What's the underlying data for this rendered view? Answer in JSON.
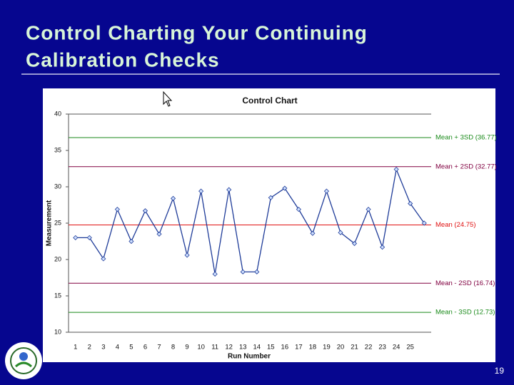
{
  "slide_title": [
    "Control Charting Your Continuing",
    "Calibration Checks"
  ],
  "page_number": "19",
  "chart_data": {
    "type": "line",
    "title": "Control Chart",
    "x_label": "Run Number",
    "y_label": "Measurement",
    "categories": [
      "1",
      "2",
      "3",
      "4",
      "5",
      "6",
      "7",
      "8",
      "9",
      "10",
      "11",
      "12",
      "13",
      "14",
      "15",
      "16",
      "17",
      "18",
      "19",
      "20",
      "21",
      "22",
      "23",
      "24",
      "25",
      null
    ],
    "series": [
      {
        "name": "Measurement",
        "color": "#1f3c99",
        "marker_fill": "#cfe0ff",
        "values": [
          23.0,
          23.0,
          20.1,
          26.9,
          22.5,
          26.7,
          23.5,
          28.4,
          20.6,
          29.4,
          18.0,
          29.6,
          18.3,
          18.3,
          28.5,
          29.8,
          26.9,
          23.6,
          29.4,
          23.7,
          22.2,
          26.9,
          21.7,
          32.4,
          27.7,
          25.0
        ]
      }
    ],
    "reference_lines": [
      {
        "label": "Mean + 3SD (36.77)",
        "value": 36.77,
        "color": "#1a8a1a"
      },
      {
        "label": "Mean + 2SD (32.77)",
        "value": 32.77,
        "color": "#800040"
      },
      {
        "label": "Mean (24.75)",
        "value": 24.75,
        "color": "#e01010"
      },
      {
        "label": "Mean - 2SD (16.74)",
        "value": 16.74,
        "color": "#800040"
      },
      {
        "label": "Mean - 3SD (12.73)",
        "value": 12.73,
        "color": "#1a8a1a"
      }
    ],
    "ylim": [
      10,
      40
    ],
    "yticks": [
      10,
      15,
      20,
      25,
      30,
      35,
      40
    ]
  }
}
